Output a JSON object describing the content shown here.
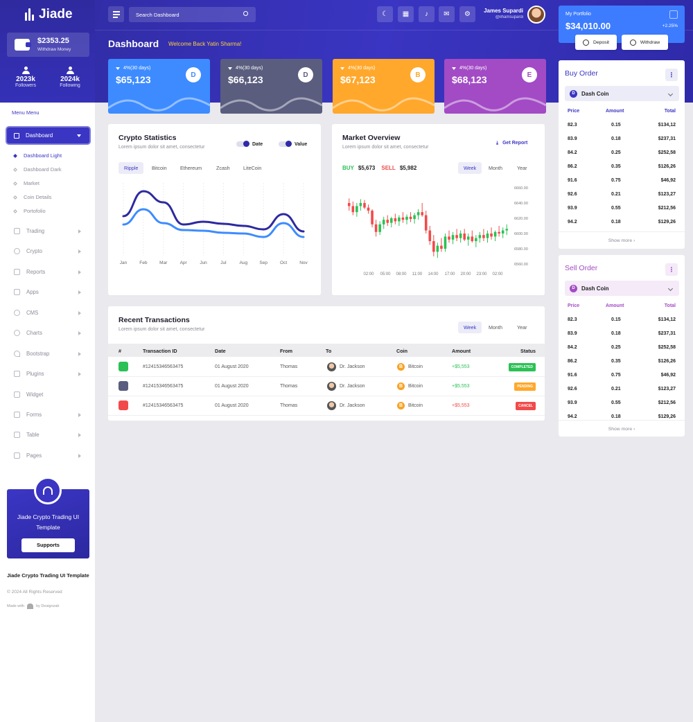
{
  "app": {
    "name": "Jiade"
  },
  "sidebar": {
    "wallet": {
      "amount": "$2353.25",
      "label": "Withdraw Money"
    },
    "followers": {
      "value": "2023k",
      "label": "Followers"
    },
    "following": {
      "value": "2024k",
      "label": "Following"
    },
    "menu_title": "Menu Menu",
    "dashboard_label": "Dashboard",
    "submenu": [
      "Dashboard Light",
      "Dashboard Dark",
      "Market",
      "Coin Details",
      "Portofolio"
    ],
    "items": [
      "Trading",
      "Crypto",
      "Reports",
      "Apps",
      "CMS",
      "Charts",
      "Bootstrap",
      "Plugins",
      "Widget",
      "Forms",
      "Table",
      "Pages"
    ],
    "promo": {
      "text": "Jiade Crypto Trading UI Template",
      "button": "Supports"
    },
    "footer": {
      "title": "Jiade Crypto Trading UI Template",
      "copyright": "© 2024 All Rights Reserved",
      "made_with": "Made with",
      "by": "by Designzab"
    }
  },
  "header": {
    "search_placeholder": "Search Dashboard",
    "user_name": "James Supardi",
    "user_handle": "@ilhamsupardi",
    "page_title": "Dashboard",
    "welcome": "Welcome Back Yatin Sharma!"
  },
  "stats": [
    {
      "change": "4%(30 days)",
      "value": "$65,123",
      "coin": "D",
      "color": "#3d8bff"
    },
    {
      "change": "4%(30 days)",
      "value": "$66,123",
      "coin": "D",
      "color": "#5a5d7e"
    },
    {
      "change": "4%(30 days)",
      "value": "$67,123",
      "coin": "B",
      "color": "#ffa82c"
    },
    {
      "change": "4%(30 days)",
      "value": "$68,123",
      "coin": "E",
      "color": "#a24bc5"
    }
  ],
  "crypto_stats": {
    "title": "Crypto Statistics",
    "subtitle": "Lorem ipsum dolor sit amet, consectetur",
    "toggle_date": "Date",
    "toggle_value": "Value",
    "tabs": [
      "Ripple",
      "Bitcoin",
      "Ethereum",
      "Zcash",
      "LiteCoin"
    ],
    "chart_data": {
      "type": "line",
      "categories": [
        "Jan",
        "Feb",
        "Mar",
        "Apr",
        "Jun",
        "Jul",
        "Aug",
        "Sep",
        "Oct",
        "Nov"
      ],
      "series": [
        {
          "values": [
            52,
            88,
            72,
            40,
            44,
            41,
            38,
            33,
            55,
            30
          ],
          "color": "#2d2aa0"
        },
        {
          "values": [
            40,
            62,
            42,
            32,
            31,
            28,
            27,
            22,
            42,
            22
          ],
          "color": "#3d8bff"
        }
      ],
      "ylim": [
        0,
        100
      ]
    }
  },
  "market": {
    "title": "Market Overview",
    "subtitle": "Lorem ipsum dolor sit amet, consectetur",
    "report_label": "Get Report",
    "buy_label": "BUY",
    "buy_value": "$5,673",
    "sell_label": "SELL",
    "sell_value": "$5,982",
    "tabs": [
      "Week",
      "Month",
      "Year"
    ],
    "chart_data": {
      "type": "candlestick",
      "x_ticks": [
        "02:00",
        "05:00",
        "08:00",
        "11:00",
        "14:00",
        "17:00",
        "20:00",
        "23:00",
        "02:00"
      ],
      "y_ticks": [
        "6660.00",
        "6640.00",
        "6620.00",
        "6600.00",
        "6580.00",
        "6560.00"
      ],
      "ylim": [
        6560,
        6660
      ],
      "ohlc": [
        [
          6640,
          6646,
          6630,
          6636
        ],
        [
          6636,
          6642,
          6624,
          6628
        ],
        [
          6628,
          6640,
          6622,
          6636
        ],
        [
          6636,
          6645,
          6630,
          6640
        ],
        [
          6640,
          6644,
          6632,
          6634
        ],
        [
          6634,
          6638,
          6626,
          6630
        ],
        [
          6630,
          6632,
          6608,
          6612
        ],
        [
          6612,
          6618,
          6596,
          6602
        ],
        [
          6602,
          6616,
          6598,
          6612
        ],
        [
          6612,
          6622,
          6606,
          6618
        ],
        [
          6618,
          6624,
          6610,
          6614
        ],
        [
          6614,
          6622,
          6608,
          6620
        ],
        [
          6620,
          6626,
          6612,
          6616
        ],
        [
          6616,
          6624,
          6610,
          6621
        ],
        [
          6621,
          6628,
          6614,
          6618
        ],
        [
          6618,
          6625,
          6612,
          6622
        ],
        [
          6622,
          6628,
          6615,
          6619
        ],
        [
          6619,
          6627,
          6613,
          6624
        ],
        [
          6624,
          6632,
          6618,
          6628
        ],
        [
          6628,
          6640,
          6622,
          6624
        ],
        [
          6624,
          6630,
          6600,
          6604
        ],
        [
          6604,
          6610,
          6585,
          6590
        ],
        [
          6590,
          6598,
          6570,
          6576
        ],
        [
          6576,
          6588,
          6568,
          6584
        ],
        [
          6584,
          6594,
          6576,
          6580
        ],
        [
          6580,
          6600,
          6576,
          6596
        ],
        [
          6596,
          6604,
          6588,
          6592
        ],
        [
          6592,
          6602,
          6586,
          6598
        ],
        [
          6598,
          6606,
          6590,
          6594
        ],
        [
          6594,
          6604,
          6588,
          6600
        ],
        [
          6600,
          6606,
          6590,
          6592
        ],
        [
          6592,
          6600,
          6584,
          6596
        ],
        [
          6596,
          6604,
          6588,
          6590
        ],
        [
          6590,
          6598,
          6582,
          6594
        ],
        [
          6594,
          6602,
          6588,
          6598
        ],
        [
          6598,
          6606,
          6590,
          6594
        ],
        [
          6594,
          6604,
          6588,
          6600
        ],
        [
          6600,
          6608,
          6592,
          6596
        ],
        [
          6596,
          6604,
          6590,
          6602
        ],
        [
          6602,
          6610,
          6596,
          6600
        ],
        [
          6600,
          6608,
          6594,
          6604
        ],
        [
          6604,
          6612,
          6598,
          6606
        ]
      ]
    }
  },
  "transactions": {
    "title": "Recent Transactions",
    "subtitle": "Lorem ipsum dolor sit amet, consectetur",
    "tabs": [
      "Week",
      "Month",
      "Year"
    ],
    "headers": [
      "#",
      "Transaction ID",
      "Date",
      "From",
      "To",
      "Coin",
      "Amount",
      "Status"
    ],
    "rows": [
      {
        "id": "#12415346563475",
        "date": "01 August 2020",
        "from": "Thomas",
        "to": "Dr. Jackson",
        "coin": "Bitcoin",
        "amount": "+$5,553",
        "status": "COMPLETED",
        "status_color": "#2bc155",
        "icon_color": "#2bc155",
        "amount_color": "#2bc155"
      },
      {
        "id": "#12415346563475",
        "date": "01 August 2020",
        "from": "Thomas",
        "to": "Dr. Jackson",
        "coin": "Bitcoin",
        "amount": "+$5,553",
        "status": "PENDING",
        "status_color": "#ffa82c",
        "icon_color": "#5a5d7e",
        "amount_color": "#2bc155"
      },
      {
        "id": "#12415346563475",
        "date": "01 August 2020",
        "from": "Thomas",
        "to": "Dr. Jackson",
        "coin": "Bitcoin",
        "amount": "+$5,553",
        "status": "CANCEL",
        "status_color": "#f24a4a",
        "icon_color": "#f24a4a",
        "amount_color": "#f24a4a"
      }
    ]
  },
  "portfolio": {
    "label": "My Portfolio",
    "value": "$34,010.00",
    "change": "+2.25%",
    "deposit": "Deposit",
    "withdraw": "Withdraw"
  },
  "buy_order": {
    "title": "Buy Order",
    "coin": "Dash Coin",
    "headers": [
      "Price",
      "Amount",
      "Total"
    ],
    "rows": [
      [
        "82.3",
        "0.15",
        "$134,12"
      ],
      [
        "83.9",
        "0.18",
        "$237,31"
      ],
      [
        "84.2",
        "0.25",
        "$252,58"
      ],
      [
        "86.2",
        "0.35",
        "$126,26"
      ],
      [
        "91.6",
        "0.75",
        "$46,92"
      ],
      [
        "92.6",
        "0.21",
        "$123,27"
      ],
      [
        "93.9",
        "0.55",
        "$212,56"
      ],
      [
        "94.2",
        "0.18",
        "$129,26"
      ]
    ],
    "show_more": "Show more",
    "accent": "#3a35c2"
  },
  "sell_order": {
    "title": "Sell Order",
    "coin": "Dash Coin",
    "headers": [
      "Price",
      "Amount",
      "Total"
    ],
    "rows": [
      [
        "82.3",
        "0.15",
        "$134,12"
      ],
      [
        "83.9",
        "0.18",
        "$237,31"
      ],
      [
        "84.2",
        "0.25",
        "$252,58"
      ],
      [
        "86.2",
        "0.35",
        "$126,26"
      ],
      [
        "91.6",
        "0.75",
        "$46,92"
      ],
      [
        "92.6",
        "0.21",
        "$123,27"
      ],
      [
        "93.9",
        "0.55",
        "$212,56"
      ],
      [
        "94.2",
        "0.18",
        "$129,26"
      ]
    ],
    "show_more": "Show more",
    "accent": "#a24bc5"
  }
}
